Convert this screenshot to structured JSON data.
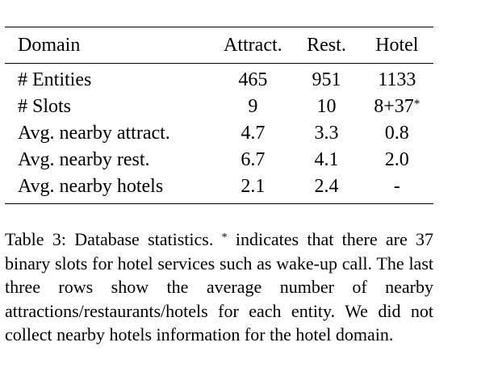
{
  "table": {
    "headers": [
      "Domain",
      "Attract.",
      "Rest.",
      "Hotel"
    ],
    "rows": [
      {
        "label": "# Entities",
        "attract": "465",
        "rest": "951",
        "hotel": "1133",
        "hotel_mark": ""
      },
      {
        "label": "# Slots",
        "attract": "9",
        "rest": "10",
        "hotel": "8+37",
        "hotel_mark": "*"
      },
      {
        "label": "Avg. nearby attract.",
        "attract": "4.7",
        "rest": "3.3",
        "hotel": "0.8",
        "hotel_mark": ""
      },
      {
        "label": "Avg. nearby rest.",
        "attract": "6.7",
        "rest": "4.1",
        "hotel": "2.0",
        "hotel_mark": ""
      },
      {
        "label": "Avg. nearby hotels",
        "attract": "2.1",
        "rest": "2.4",
        "hotel": "-",
        "hotel_mark": ""
      }
    ]
  },
  "caption": {
    "prefix": "Table 3: Database statistics.",
    "mark": "*",
    "text": "indicates that there are 37 binary slots for hotel services such as wake-up call. The last three rows show the average number of nearby attractions/restaurants/hotels for each entity.  We did not collect nearby hotels information for the hotel domain."
  }
}
